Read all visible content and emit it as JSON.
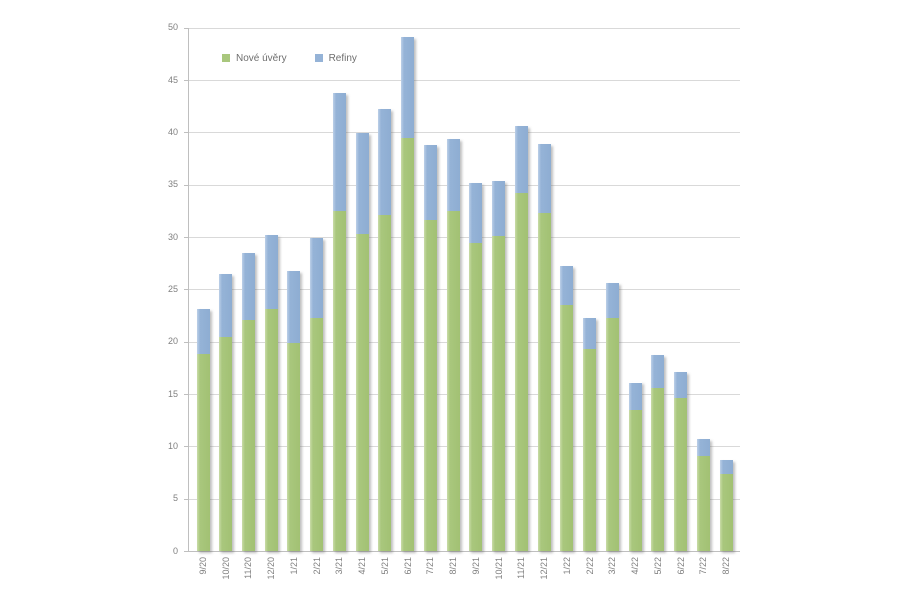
{
  "chart_data": {
    "type": "bar",
    "stacked": true,
    "title": "",
    "xlabel": "",
    "ylabel": "",
    "ylim": [
      0,
      50
    ],
    "ytick_step": 5,
    "grid": true,
    "legend_position": "top-left-inside",
    "categories": [
      "9/20",
      "10/20",
      "11/20",
      "12/20",
      "1/21",
      "2/21",
      "3/21",
      "4/21",
      "5/21",
      "6/21",
      "7/21",
      "8/21",
      "9/21",
      "10/21",
      "11/21",
      "12/21",
      "1/22",
      "2/22",
      "3/22",
      "4/22",
      "5/22",
      "6/22",
      "7/22",
      "8/22"
    ],
    "series": [
      {
        "name": "Nové úvěry",
        "color": "#a9c77d",
        "values": [
          18.8,
          20.4,
          22.1,
          23.1,
          19.9,
          22.3,
          32.5,
          30.3,
          32.1,
          39.5,
          31.6,
          32.5,
          29.4,
          30.1,
          34.2,
          32.3,
          23.5,
          19.3,
          22.3,
          13.5,
          15.6,
          14.6,
          9.1,
          7.4
        ]
      },
      {
        "name": "Refiny",
        "color": "#95b3d7",
        "values": [
          4.3,
          6.1,
          6.4,
          7.1,
          6.9,
          7.6,
          11.3,
          9.6,
          10.1,
          9.6,
          7.2,
          6.9,
          5.8,
          5.3,
          6.4,
          6.6,
          3.7,
          3.0,
          3.3,
          2.6,
          3.1,
          2.5,
          1.6,
          1.3
        ]
      }
    ],
    "ytick_labels": [
      "0",
      "5",
      "10",
      "15",
      "20",
      "25",
      "30",
      "35",
      "40",
      "45",
      "50"
    ]
  }
}
